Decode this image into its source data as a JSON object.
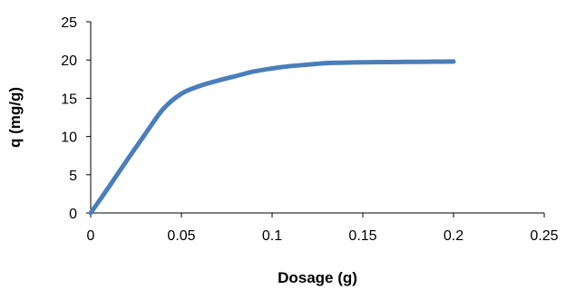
{
  "chart_data": {
    "type": "line",
    "title": "",
    "xlabel": "Dosage (g)",
    "ylabel": "q (mg/g)",
    "xlim": [
      0,
      0.25
    ],
    "ylim": [
      0,
      25
    ],
    "x_ticks": [
      "0",
      "0.05",
      "0.1",
      "0.15",
      "0.2",
      "0.25"
    ],
    "y_ticks": [
      "0",
      "5",
      "10",
      "15",
      "20",
      "25"
    ],
    "grid": false,
    "legend": "none",
    "series": [
      {
        "color": "#4a7ebb",
        "x": [
          0,
          0.01,
          0.02,
          0.03,
          0.04,
          0.05,
          0.06,
          0.07,
          0.08,
          0.09,
          0.1,
          0.11,
          0.12,
          0.13,
          0.14,
          0.15,
          0.16,
          0.17,
          0.18,
          0.19,
          0.2
        ],
        "y": [
          0,
          3.4,
          6.9,
          10.3,
          13.6,
          15.6,
          16.6,
          17.3,
          17.9,
          18.5,
          18.9,
          19.2,
          19.4,
          19.6,
          19.65,
          19.7,
          19.72,
          19.74,
          19.76,
          19.78,
          19.8
        ]
      }
    ]
  }
}
